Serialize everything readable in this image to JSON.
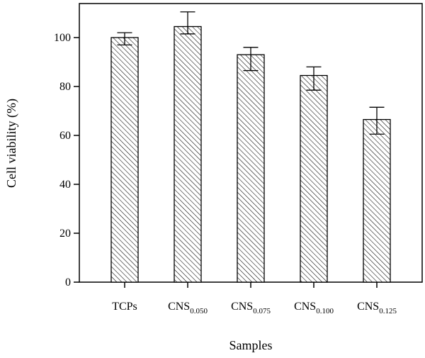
{
  "chart_data": {
    "type": "bar",
    "title": "",
    "xlabel": "Samples",
    "ylabel": "Cell viability (%)",
    "ylim": [
      0,
      115
    ],
    "yticks": [
      0,
      20,
      40,
      60,
      80,
      100
    ],
    "grid": false,
    "legend": "none",
    "bar_fill": "diagonal-hatch",
    "colors": {
      "stroke": "#000000",
      "fill": "#ffffff"
    },
    "categories": [
      {
        "base": "TCPs",
        "sub": ""
      },
      {
        "base": "CNS",
        "sub": "0.050"
      },
      {
        "base": "CNS",
        "sub": "0.075"
      },
      {
        "base": "CNS",
        "sub": "0.100"
      },
      {
        "base": "CNS",
        "sub": "0.125"
      }
    ],
    "values": [
      100,
      104.5,
      93,
      84.5,
      66.5
    ],
    "error_low": [
      97,
      101.5,
      86.5,
      78.5,
      60.5
    ],
    "error_high": [
      102,
      110.5,
      96,
      88,
      71.5
    ]
  }
}
